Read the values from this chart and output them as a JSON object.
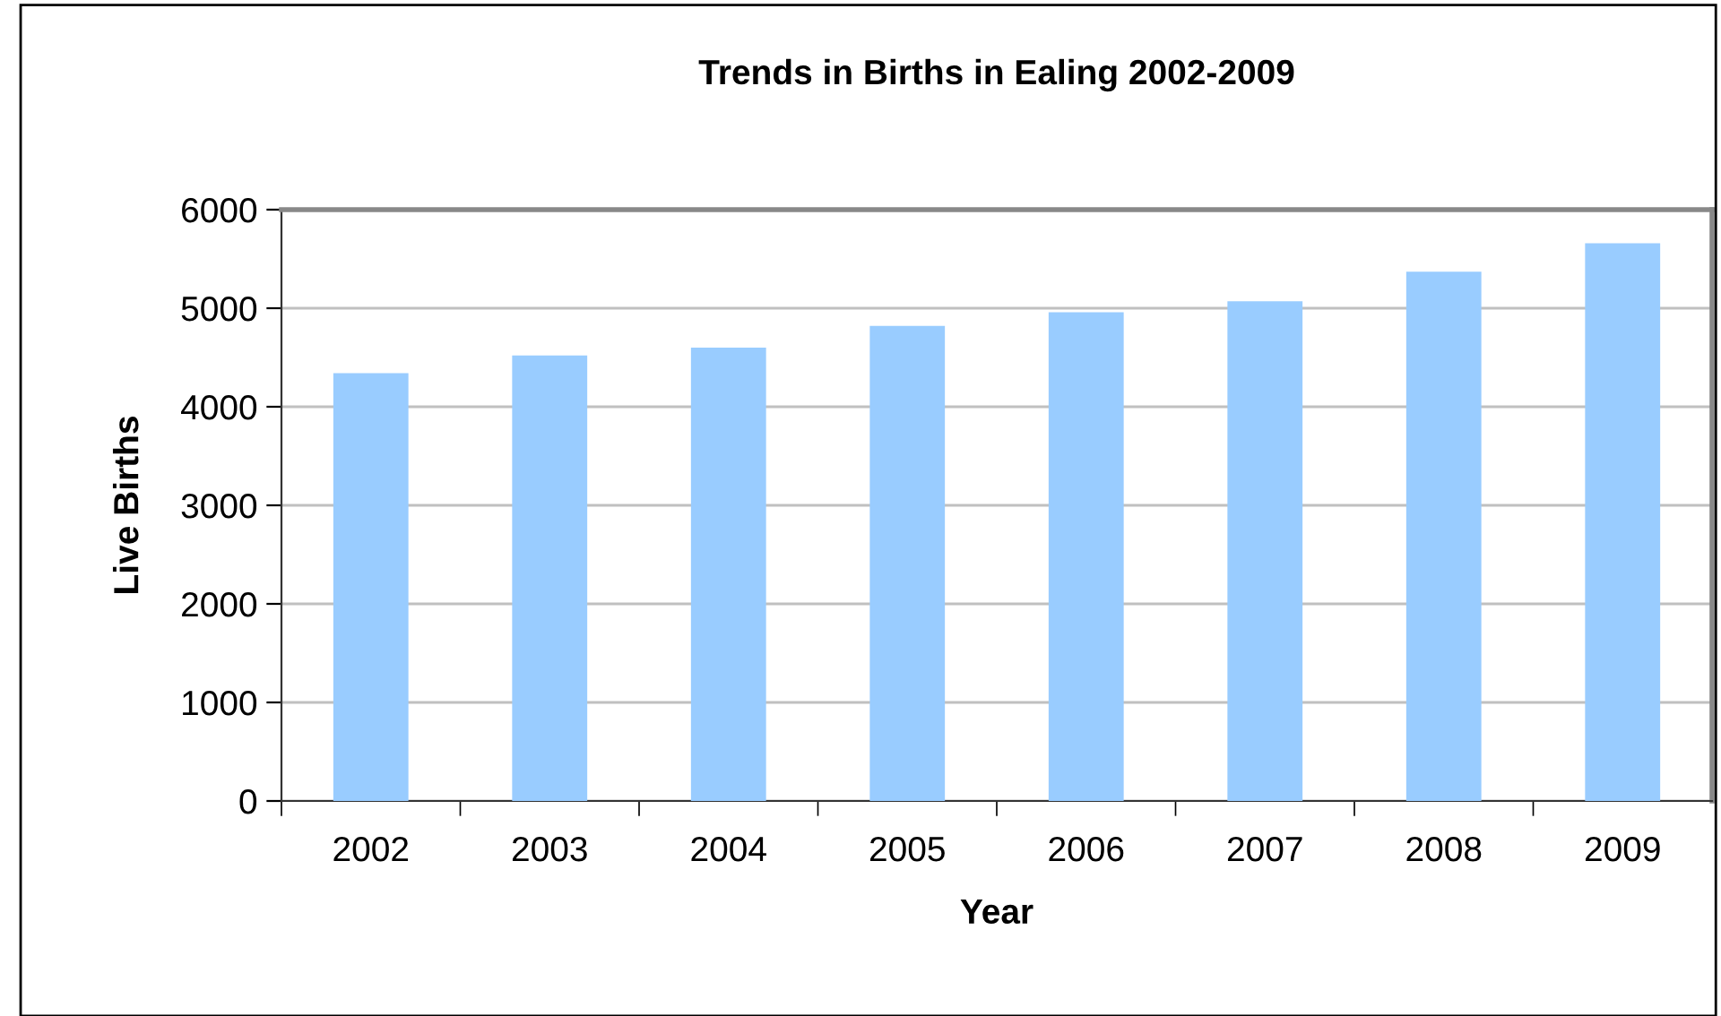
{
  "chart_data": {
    "type": "bar",
    "title": "Trends in Births in Ealing 2002-2009",
    "xlabel": "Year",
    "ylabel": "Live Births",
    "categories": [
      "2002",
      "2003",
      "2004",
      "2005",
      "2006",
      "2007",
      "2008",
      "2009"
    ],
    "values": [
      4340,
      4520,
      4600,
      4820,
      4960,
      5070,
      5370,
      5660
    ],
    "color": "#99ccff",
    "ylim": [
      0,
      6000
    ],
    "yticks": [
      0,
      1000,
      2000,
      3000,
      4000,
      5000,
      6000
    ],
    "grid": "y",
    "legend": false
  }
}
